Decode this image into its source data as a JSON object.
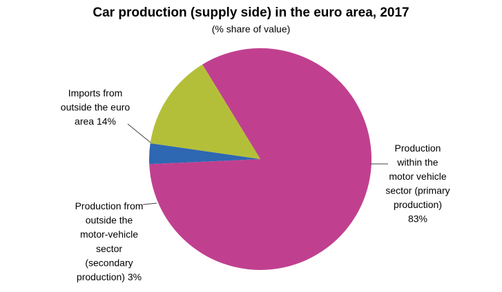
{
  "chart_data": {
    "type": "pie",
    "title": "Car production (supply side) in the euro area, 2017",
    "subtitle": "(% share of value)",
    "slices": [
      {
        "label_lines": [
          "Production",
          "within the",
          "motor vehicle",
          "sector (primary",
          "production)",
          "83%"
        ],
        "value": 83,
        "color": "#c0408f"
      },
      {
        "label_lines": [
          "Production from",
          "outside the",
          "motor-vehicle",
          "sector",
          "(secondary",
          "production)  3%"
        ],
        "value": 3,
        "color": "#2e67b2"
      },
      {
        "label_lines": [
          "Imports from",
          "outside the euro",
          "area  14%"
        ],
        "value": 14,
        "color": "#b4bf39"
      }
    ],
    "legend": "none"
  }
}
